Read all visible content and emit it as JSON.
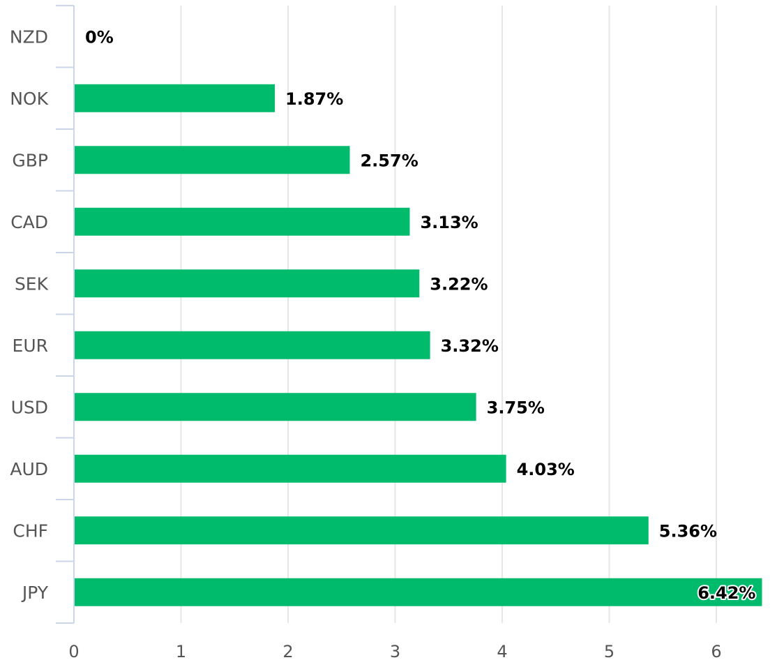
{
  "chart_data": {
    "type": "bar",
    "orientation": "horizontal",
    "categories": [
      "NZD",
      "NOK",
      "GBP",
      "CAD",
      "SEK",
      "EUR",
      "USD",
      "AUD",
      "CHF",
      "JPY"
    ],
    "values": [
      0,
      1.87,
      2.57,
      3.13,
      3.22,
      3.32,
      3.75,
      4.03,
      5.36,
      6.42
    ],
    "data_labels": [
      "0%",
      "1.87%",
      "2.57%",
      "3.13%",
      "3.22%",
      "3.32%",
      "3.75%",
      "4.03%",
      "5.36%",
      "6.42%"
    ],
    "x_ticks": [
      "0",
      "1",
      "2",
      "3",
      "4",
      "5",
      "6"
    ],
    "xlim": [
      0,
      6.42
    ],
    "title": "",
    "xlabel": "",
    "ylabel": "",
    "grid": true,
    "legend": "none",
    "bar_color": "#00bb6b",
    "grid_color": "#e6e6e6",
    "axis_color": "#ccd6eb"
  }
}
